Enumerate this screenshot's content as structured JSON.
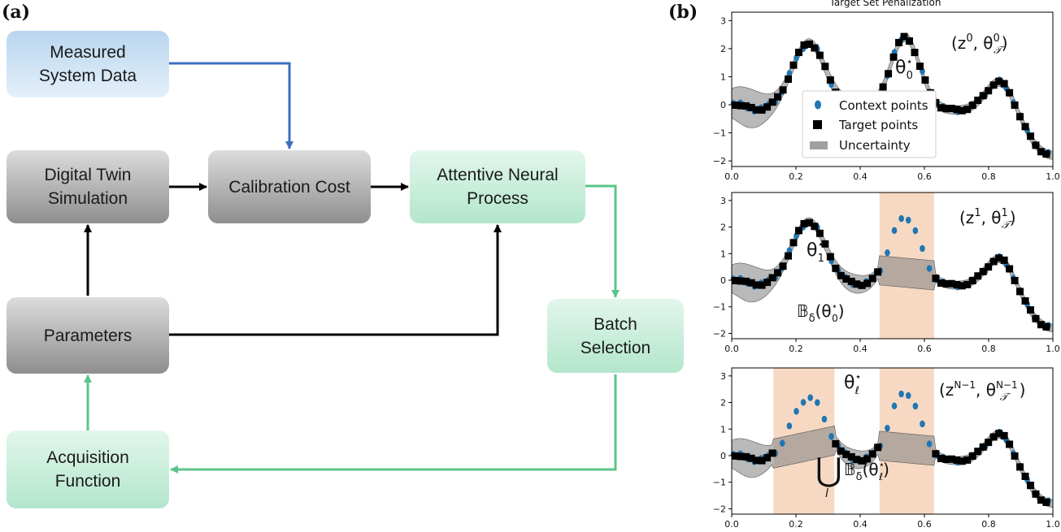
{
  "labels": {
    "a": "(a)",
    "b": "(b)"
  },
  "flowchart": {
    "measured": "Measured\nSystem Data",
    "twin": "Digital Twin\nSimulation",
    "calib": "Calibration Cost",
    "anp": "Attentive Neural\nProcess",
    "params": "Parameters",
    "batch": "Batch\nSelection",
    "acq": "Acquisition\nFunction"
  },
  "plots": {
    "title": "Target Set Penalization",
    "legend": {
      "context": "Context points",
      "target": "Target points",
      "uncertainty": "Uncertainty"
    },
    "annotations": [
      {
        "tag_base": "(z",
        "tag_sup": "0",
        "theta_sub": "0",
        "min_label": "θ",
        "min_sup": "⋆",
        "min_sub": "0"
      },
      {
        "tag_base": "(z",
        "tag_sup": "1",
        "theta_sub": "1",
        "min_label": "θ",
        "min_sup": "⋆",
        "min_sub": "1",
        "ball": "𝔹",
        "ball_sub": "δ",
        "ball_arg": "(θ",
        "ball_arg_sup": "⋆",
        "ball_arg_sub": "0",
        "ball_close": ")"
      },
      {
        "tag_base": "(z",
        "tag_sup": "N−1",
        "theta_sub": "N−1",
        "min_label": "θ",
        "min_sup": "⋆",
        "min_sub": "ℓ",
        "union": "⋃",
        "union_sub": "l",
        "ball": "𝔹",
        "ball_sub": "δ",
        "ball_arg": "(θ",
        "ball_arg_sup": "⋆",
        "ball_arg_sub": "ℓ",
        "ball_close": ")"
      }
    ]
  },
  "chart_data": {
    "type": "scatter",
    "title": "Target Set Penalization",
    "xlim": [
      0,
      1
    ],
    "ylim": [
      -2.2,
      3.3
    ],
    "xticks": [
      0.0,
      0.2,
      0.4,
      0.6,
      0.8,
      1.0
    ],
    "yticks": [
      -2,
      -1,
      0,
      1,
      2,
      3
    ],
    "legend_position": "left-middle",
    "colors": {
      "context": "#1f77b4",
      "target": "#000000",
      "uncertainty": "#808080",
      "excluded": "#f3c9aa"
    },
    "panels": [
      {
        "excluded_regions": []
      },
      {
        "excluded_regions": [
          [
            0.46,
            0.63
          ]
        ]
      },
      {
        "excluded_regions": [
          [
            0.13,
            0.32
          ],
          [
            0.46,
            0.63
          ]
        ]
      }
    ]
  }
}
